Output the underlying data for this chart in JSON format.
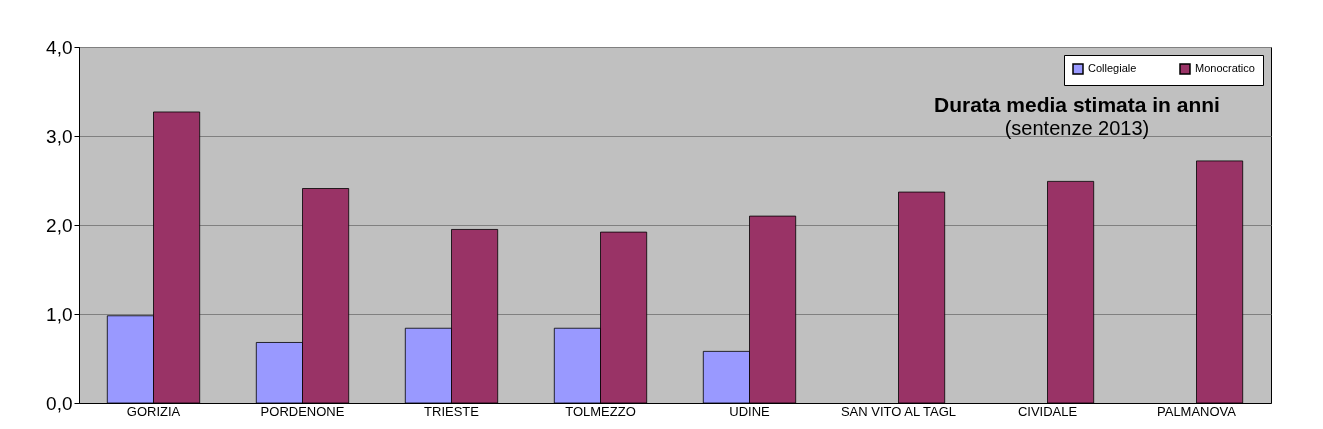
{
  "chart_data": {
    "type": "bar",
    "title": "Durata media stimata in anni",
    "subtitle": "(sentenze 2013)",
    "categories": [
      "GORIZIA",
      "PORDENONE",
      "TRIESTE",
      "TOLMEZZO",
      "UDINE",
      "SAN VITO AL TAGL",
      "CIVIDALE",
      "PALMANOVA"
    ],
    "series": [
      {
        "name": "Collegiale",
        "color": "#9999ff",
        "values": [
          0.98,
          0.68,
          0.84,
          0.84,
          0.58,
          null,
          null,
          null
        ]
      },
      {
        "name": "Monocratico",
        "color": "#993366",
        "values": [
          3.27,
          2.41,
          1.95,
          1.92,
          2.1,
          2.37,
          2.49,
          2.72
        ]
      }
    ],
    "ylim": [
      0,
      4
    ],
    "yticks": [
      {
        "value": 0,
        "label": "0,0"
      },
      {
        "value": 1,
        "label": "1,0"
      },
      {
        "value": 2,
        "label": "2,0"
      },
      {
        "value": 3,
        "label": "3,0"
      },
      {
        "value": 4,
        "label": "4,0"
      }
    ],
    "grid": "y",
    "legend": "top right"
  }
}
